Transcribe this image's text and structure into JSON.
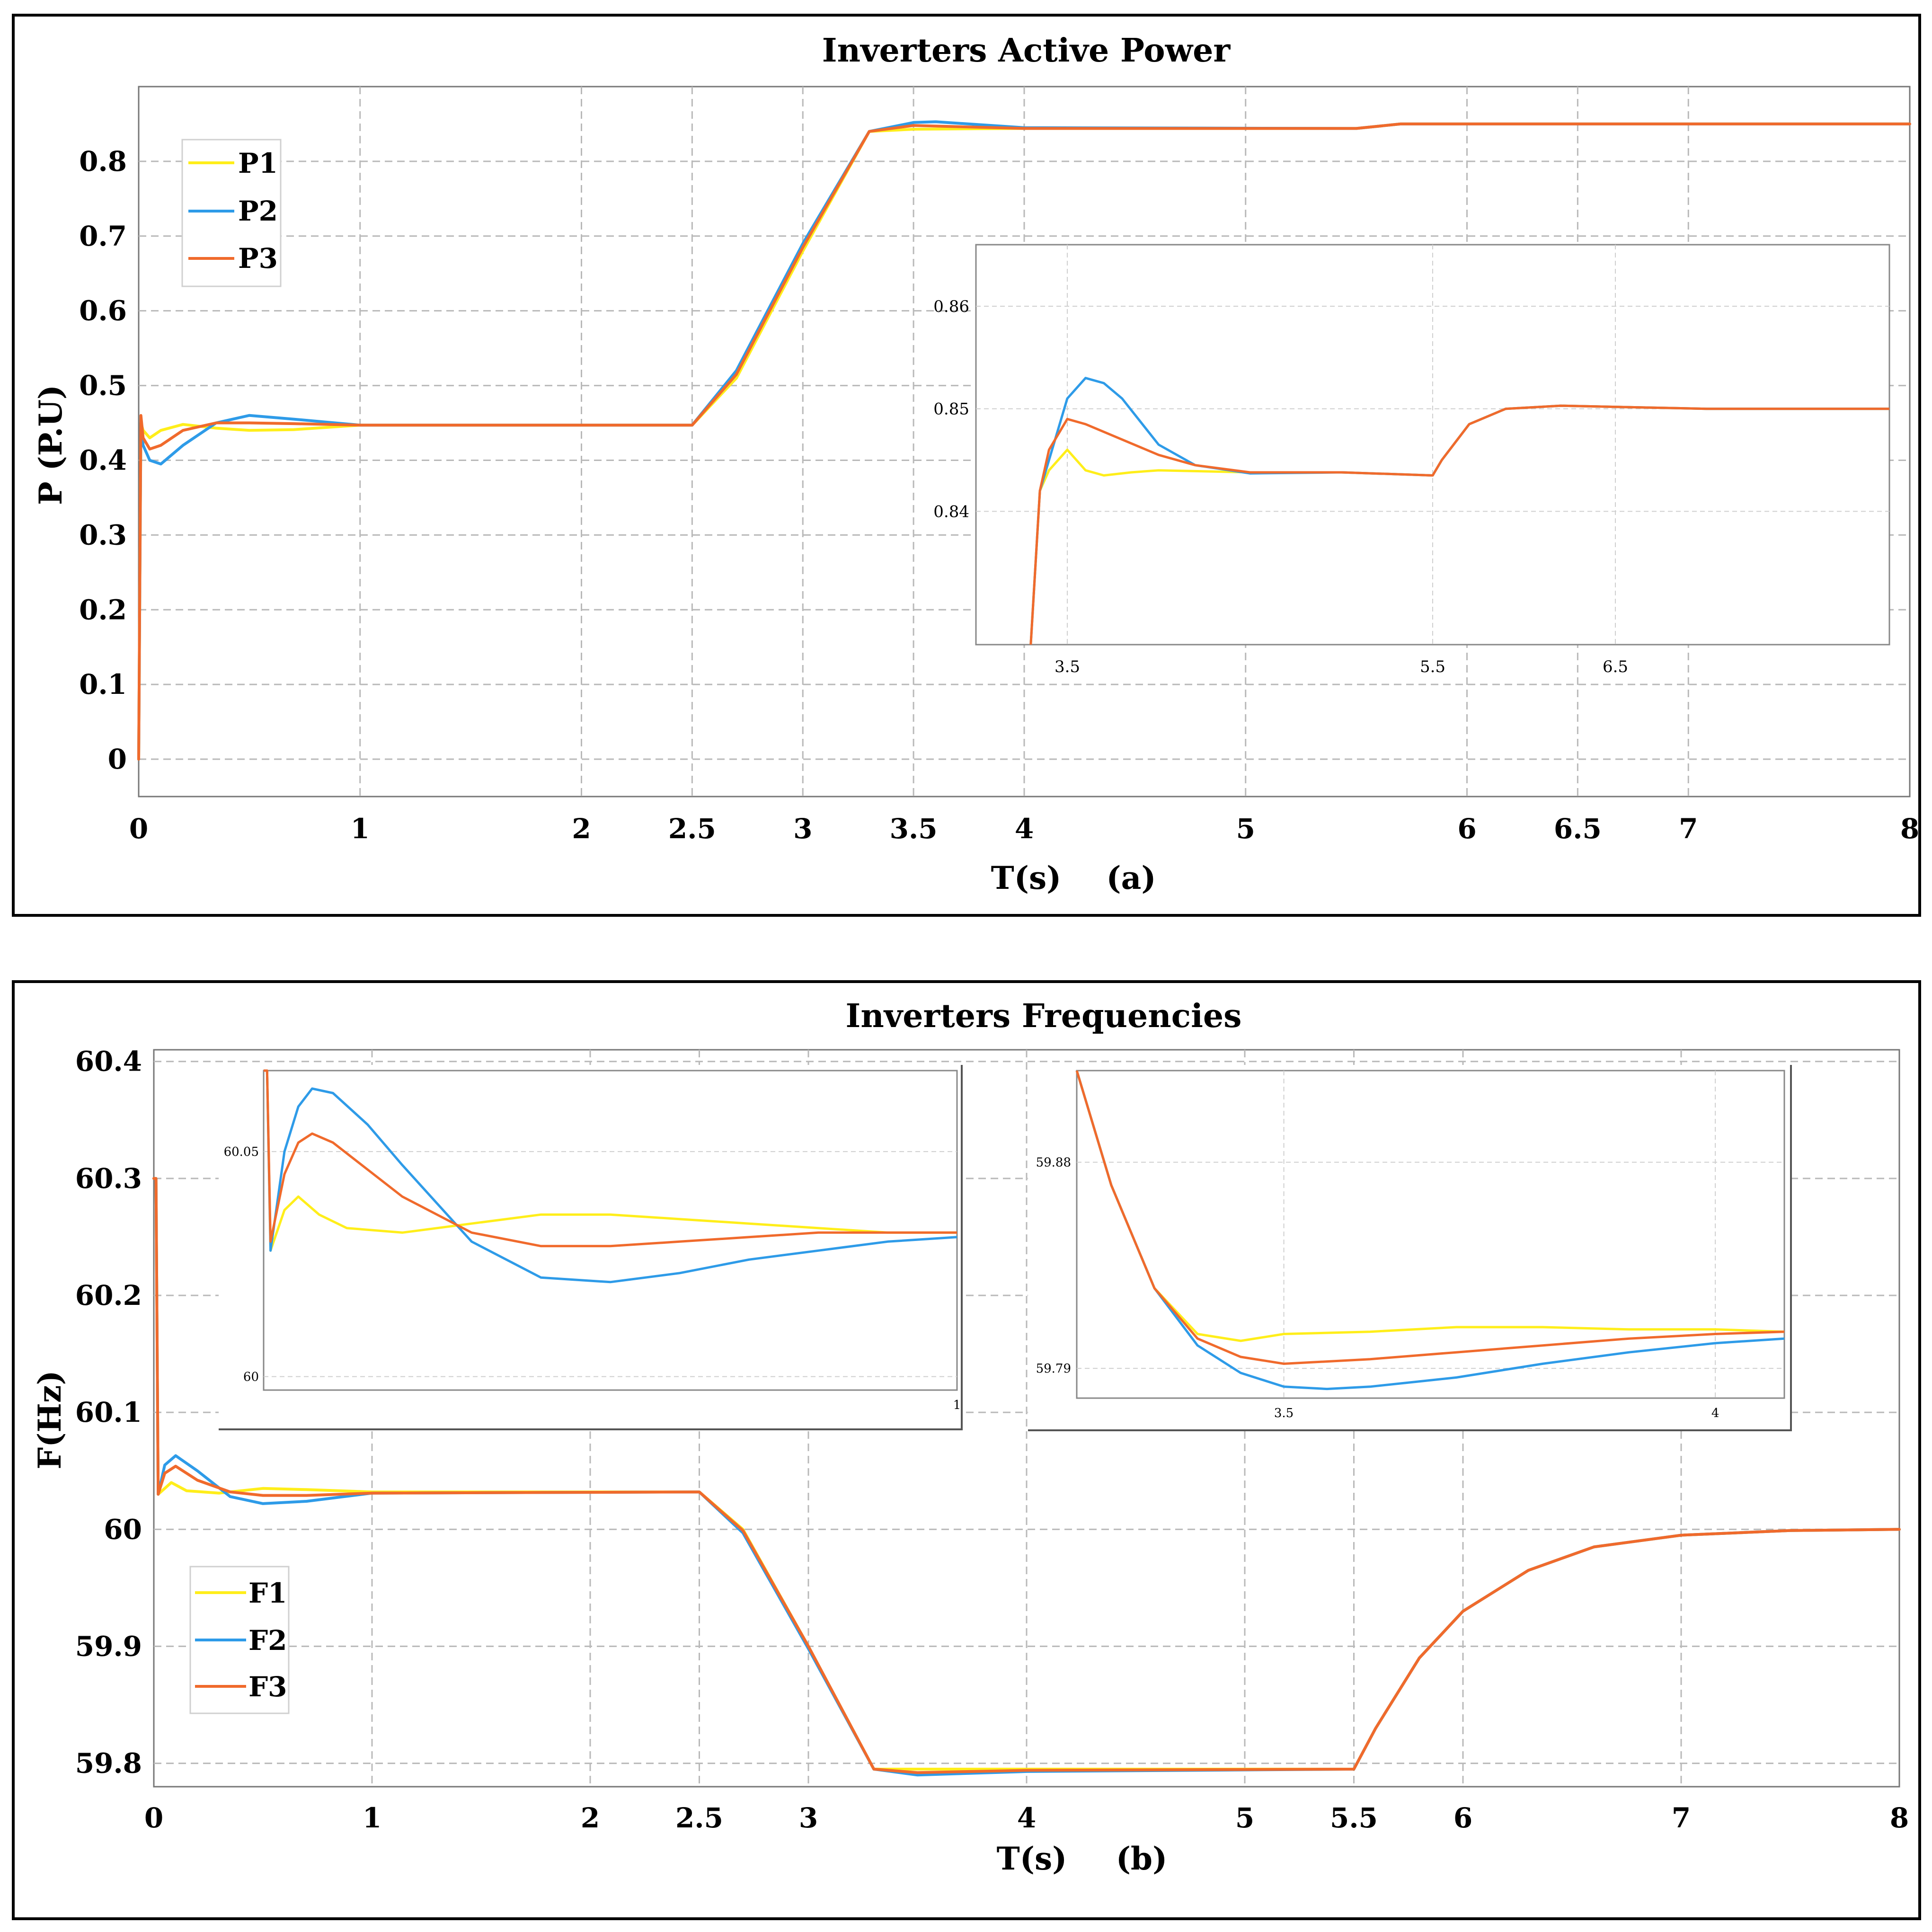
{
  "colors": {
    "s1": "#FFEE1A",
    "s2": "#2E9BE8",
    "s3": "#F06A2C"
  },
  "chart_data": [
    {
      "id": "a",
      "type": "line",
      "title": "Inverters Active Power",
      "xlabel": "T(s)",
      "panel_label": "(a)",
      "ylabel": "P (P.U)",
      "xlim": [
        0,
        8
      ],
      "ylim": [
        -0.05,
        0.9
      ],
      "xticks": [
        0,
        1,
        2,
        2.5,
        3,
        3.5,
        4,
        5,
        6,
        6.5,
        7,
        8
      ],
      "yticks": [
        0,
        0.1,
        0.2,
        0.3,
        0.4,
        0.5,
        0.6,
        0.7,
        0.8
      ],
      "legend": [
        "P1",
        "P2",
        "P3"
      ],
      "series": [
        {
          "name": "P1",
          "x": [
            0,
            0.01,
            0.02,
            0.05,
            0.1,
            0.2,
            0.35,
            0.5,
            0.7,
            1.0,
            2.5,
            2.7,
            3.0,
            3.3,
            3.5,
            4.0,
            5.5,
            5.7,
            8.0
          ],
          "y": [
            0,
            0.45,
            0.44,
            0.43,
            0.44,
            0.448,
            0.443,
            0.44,
            0.441,
            0.447,
            0.447,
            0.51,
            0.68,
            0.84,
            0.843,
            0.844,
            0.844,
            0.85,
            0.85
          ]
        },
        {
          "name": "P2",
          "x": [
            0,
            0.01,
            0.02,
            0.05,
            0.1,
            0.2,
            0.35,
            0.5,
            0.7,
            1.0,
            2.5,
            2.7,
            3.0,
            3.3,
            3.5,
            3.6,
            4.0,
            5.5,
            5.7,
            8.0
          ],
          "y": [
            0,
            0.45,
            0.42,
            0.4,
            0.395,
            0.42,
            0.45,
            0.46,
            0.455,
            0.447,
            0.447,
            0.52,
            0.69,
            0.84,
            0.852,
            0.853,
            0.845,
            0.844,
            0.85,
            0.85
          ]
        },
        {
          "name": "P3",
          "x": [
            0,
            0.01,
            0.02,
            0.05,
            0.1,
            0.2,
            0.35,
            0.5,
            0.7,
            1.0,
            2.5,
            2.7,
            3.0,
            3.3,
            3.5,
            4.0,
            5.5,
            5.7,
            8.0
          ],
          "y": [
            0,
            0.46,
            0.43,
            0.415,
            0.42,
            0.44,
            0.45,
            0.45,
            0.449,
            0.447,
            0.447,
            0.515,
            0.685,
            0.84,
            0.848,
            0.844,
            0.844,
            0.85,
            0.85
          ]
        }
      ],
      "inset": {
        "xlim": [
          3.0,
          8.0
        ],
        "ylim": [
          0.827,
          0.866
        ],
        "xticks": [
          3.5,
          5.5,
          6.5
        ],
        "yticks": [
          0.84,
          0.85,
          0.86
        ],
        "series": [
          {
            "name": "P1",
            "x": [
              3.3,
              3.35,
              3.4,
              3.5,
              3.6,
              3.7,
              3.85,
              4.0,
              4.5,
              5.0,
              5.5,
              5.55,
              5.7,
              5.9,
              6.2,
              7.0,
              8.0
            ],
            "y": [
              0.827,
              0.842,
              0.844,
              0.846,
              0.844,
              0.8435,
              0.8438,
              0.844,
              0.8438,
              0.8438,
              0.8435,
              0.845,
              0.8485,
              0.85,
              0.8503,
              0.85,
              0.85
            ]
          },
          {
            "name": "P2",
            "x": [
              3.3,
              3.35,
              3.4,
              3.5,
              3.6,
              3.7,
              3.8,
              4.0,
              4.2,
              4.5,
              5.0,
              5.5,
              5.55,
              5.7,
              5.9,
              6.2,
              7.0,
              8.0
            ],
            "y": [
              0.827,
              0.842,
              0.845,
              0.851,
              0.853,
              0.8525,
              0.851,
              0.8465,
              0.8445,
              0.8437,
              0.8438,
              0.8435,
              0.845,
              0.8485,
              0.85,
              0.8503,
              0.85,
              0.85
            ]
          },
          {
            "name": "P3",
            "x": [
              3.3,
              3.35,
              3.4,
              3.5,
              3.6,
              3.8,
              4.0,
              4.2,
              4.5,
              5.0,
              5.5,
              5.55,
              5.7,
              5.9,
              6.2,
              7.0,
              8.0
            ],
            "y": [
              0.827,
              0.842,
              0.846,
              0.849,
              0.8485,
              0.847,
              0.8455,
              0.8445,
              0.8438,
              0.8438,
              0.8435,
              0.845,
              0.8485,
              0.85,
              0.8503,
              0.85,
              0.85
            ]
          }
        ]
      }
    },
    {
      "id": "b",
      "type": "line",
      "title": "Inverters Frequencies",
      "xlabel": "T(s)",
      "panel_label": "(b)",
      "ylabel": "F(Hz)",
      "xlim": [
        0,
        8
      ],
      "ylim": [
        59.78,
        60.41
      ],
      "xticks": [
        0,
        1,
        2,
        2.5,
        3,
        4,
        5,
        5.5,
        6,
        7,
        8
      ],
      "yticks": [
        59.8,
        59.9,
        60,
        60.1,
        60.2,
        60.3,
        60.4
      ],
      "ytick_labels": [
        "59.8",
        "59.9",
        "60",
        "60.1",
        "60.2",
        "60.3",
        "60.4"
      ],
      "legend": [
        "F1",
        "F2",
        "F3"
      ],
      "series": [
        {
          "name": "F1",
          "x": [
            0,
            0.01,
            0.02,
            0.05,
            0.08,
            0.15,
            0.3,
            0.5,
            0.7,
            1.0,
            2.5,
            2.7,
            3.0,
            3.3,
            3.5,
            4.0,
            5.5,
            5.6,
            5.8,
            6.0,
            6.3,
            6.6,
            7.0,
            7.5,
            8.0
          ],
          "y": [
            60.3,
            60.3,
            60.03,
            60.035,
            60.04,
            60.033,
            60.031,
            60.035,
            60.034,
            60.032,
            60.032,
            60.0,
            59.9,
            59.795,
            59.795,
            59.795,
            59.795,
            59.83,
            59.89,
            59.93,
            59.965,
            59.985,
            59.995,
            59.999,
            60.0
          ]
        },
        {
          "name": "F2",
          "x": [
            0,
            0.01,
            0.02,
            0.05,
            0.1,
            0.2,
            0.35,
            0.5,
            0.7,
            1.0,
            2.5,
            2.7,
            3.0,
            3.3,
            3.5,
            4.0,
            5.5,
            5.6,
            5.8,
            6.0,
            6.3,
            6.6,
            7.0,
            7.5,
            8.0
          ],
          "y": [
            60.3,
            60.3,
            60.03,
            60.055,
            60.063,
            60.05,
            60.028,
            60.022,
            60.024,
            60.031,
            60.032,
            59.997,
            59.898,
            59.795,
            59.79,
            59.793,
            59.795,
            59.83,
            59.89,
            59.93,
            59.965,
            59.985,
            59.995,
            59.999,
            60.0
          ]
        },
        {
          "name": "F3",
          "x": [
            0,
            0.01,
            0.02,
            0.05,
            0.1,
            0.2,
            0.35,
            0.5,
            0.7,
            1.0,
            2.5,
            2.7,
            3.0,
            3.3,
            3.5,
            4.0,
            5.5,
            5.6,
            5.8,
            6.0,
            6.3,
            6.6,
            7.0,
            7.5,
            8.0
          ],
          "y": [
            60.3,
            60.3,
            60.03,
            60.048,
            60.054,
            60.042,
            60.032,
            60.029,
            60.029,
            60.031,
            60.032,
            59.999,
            59.9,
            59.795,
            59.792,
            59.794,
            59.795,
            59.83,
            59.89,
            59.93,
            59.965,
            59.985,
            59.995,
            59.999,
            60.0
          ]
        }
      ],
      "inset_left": {
        "xlim": [
          0,
          1.0
        ],
        "ylim": [
          59.997,
          60.068
        ],
        "xticks": [
          1
        ],
        "yticks": [
          60,
          60.05
        ],
        "ytick_labels": [
          "60",
          "60.05"
        ],
        "series": [
          {
            "name": "F1",
            "x": [
              0,
              0.005,
              0.01,
              0.03,
              0.05,
              0.08,
              0.12,
              0.2,
              0.3,
              0.4,
              0.5,
              0.6,
              0.7,
              0.8,
              0.9,
              1.0
            ],
            "y": [
              60.07,
              60.07,
              60.028,
              60.037,
              60.04,
              60.036,
              60.033,
              60.032,
              60.034,
              60.036,
              60.036,
              60.035,
              60.034,
              60.033,
              60.032,
              60.032
            ]
          },
          {
            "name": "F2",
            "x": [
              0,
              0.005,
              0.01,
              0.03,
              0.05,
              0.07,
              0.1,
              0.15,
              0.2,
              0.3,
              0.4,
              0.5,
              0.6,
              0.7,
              0.8,
              0.9,
              1.0
            ],
            "y": [
              60.07,
              60.07,
              60.028,
              60.05,
              60.06,
              60.064,
              60.063,
              60.056,
              60.047,
              60.03,
              60.022,
              60.021,
              60.023,
              60.026,
              60.028,
              60.03,
              60.031
            ]
          },
          {
            "name": "F3",
            "x": [
              0,
              0.005,
              0.01,
              0.03,
              0.05,
              0.07,
              0.1,
              0.15,
              0.2,
              0.3,
              0.4,
              0.5,
              0.6,
              0.7,
              0.8,
              0.9,
              1.0
            ],
            "y": [
              60.07,
              60.07,
              60.03,
              60.045,
              60.052,
              60.054,
              60.052,
              60.046,
              60.04,
              60.032,
              60.029,
              60.029,
              60.03,
              60.031,
              60.032,
              60.032,
              60.032
            ]
          }
        ]
      },
      "inset_right": {
        "xlim": [
          3.26,
          4.08
        ],
        "ylim": [
          59.777,
          59.92
        ],
        "xticks": [
          3.5,
          4
        ],
        "yticks": [
          59.79,
          59.88
        ],
        "ytick_labels": [
          "59.79",
          "59.88"
        ],
        "series": [
          {
            "name": "F1",
            "x": [
              3.26,
              3.3,
              3.35,
              3.4,
              3.45,
              3.5,
              3.6,
              3.7,
              3.8,
              3.9,
              4.0,
              4.08
            ],
            "y": [
              59.92,
              59.87,
              59.825,
              59.805,
              59.802,
              59.805,
              59.806,
              59.808,
              59.808,
              59.807,
              59.807,
              59.806
            ]
          },
          {
            "name": "F2",
            "x": [
              3.26,
              3.3,
              3.35,
              3.4,
              3.45,
              3.5,
              3.55,
              3.6,
              3.7,
              3.8,
              3.9,
              4.0,
              4.08
            ],
            "y": [
              59.92,
              59.87,
              59.825,
              59.8,
              59.788,
              59.782,
              59.781,
              59.782,
              59.786,
              59.792,
              59.797,
              59.801,
              59.803
            ]
          },
          {
            "name": "F3",
            "x": [
              3.26,
              3.3,
              3.35,
              3.4,
              3.45,
              3.5,
              3.6,
              3.7,
              3.8,
              3.9,
              4.0,
              4.08
            ],
            "y": [
              59.92,
              59.87,
              59.825,
              59.803,
              59.795,
              59.792,
              59.794,
              59.797,
              59.8,
              59.803,
              59.805,
              59.806
            ]
          }
        ]
      }
    }
  ]
}
